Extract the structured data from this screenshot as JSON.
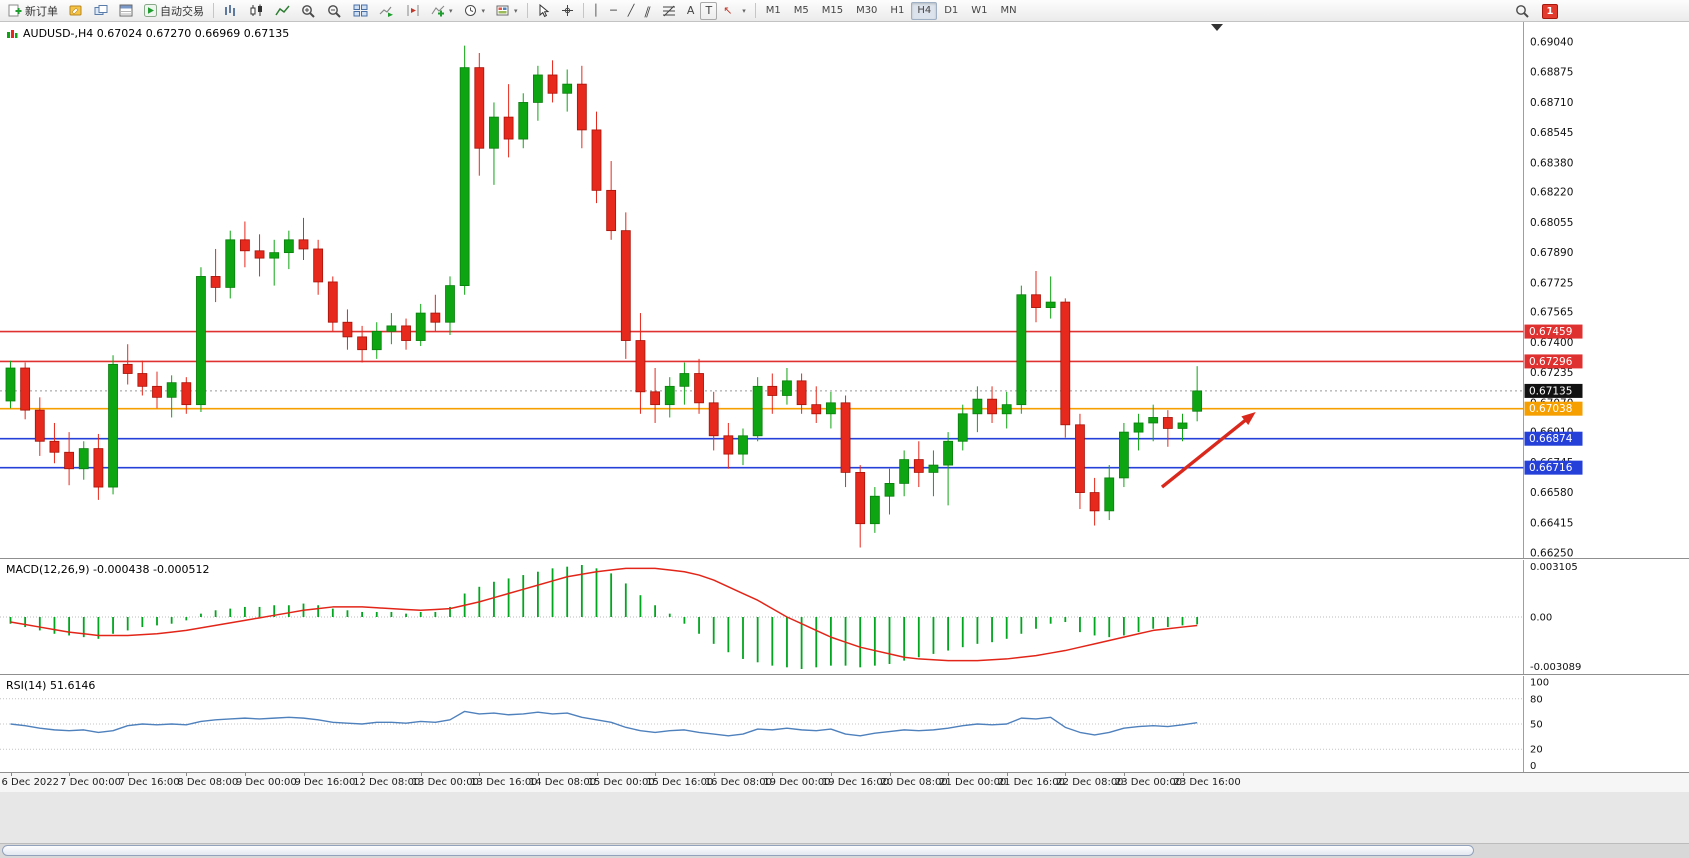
{
  "toolbar": {
    "new_order": "新订单",
    "autotrading": "自动交易",
    "timeframes": [
      "M1",
      "M5",
      "M15",
      "M30",
      "H1",
      "H4",
      "D1",
      "W1",
      "MN"
    ],
    "active_timeframe": "H4",
    "notification_badge": "1",
    "glyphs": {
      "vertical_line": "│",
      "horizontal_line": "─",
      "trendline": "╱",
      "channel": "∥",
      "text": "A",
      "text_label": "T",
      "arrow": "↖",
      "dropdown": "▾"
    }
  },
  "chart": {
    "title": "AUDUSD-,H4 0.67024 0.67270 0.66969 0.67135",
    "symbol": "AUDUSD-,H4",
    "ohlc": {
      "open": "0.67024",
      "high": "0.67270",
      "low": "0.66969",
      "close": "0.67135"
    }
  },
  "panels": {
    "macd_label": "MACD(12,26,9) -0.000438 -0.000512",
    "rsi_label": "RSI(14) 51.6146"
  },
  "chart_data": [
    {
      "type": "candlestick",
      "symbol": "AUDUSD-",
      "timeframe": "H4",
      "ylim": [
        0.6625,
        0.6904
      ],
      "y_axis_labels": [
        "0.69040",
        "0.68875",
        "0.68710",
        "0.68545",
        "0.68380",
        "0.68220",
        "0.68055",
        "0.67890",
        "0.67725",
        "0.67565",
        "0.67400",
        "0.67235",
        "0.67070",
        "0.66910",
        "0.66745",
        "0.66580",
        "0.66415",
        "0.66250"
      ],
      "x_labels": [
        "6 Dec 2022",
        "7 Dec 00:00",
        "7 Dec 16:00",
        "8 Dec 08:00",
        "9 Dec 00:00",
        "9 Dec 16:00",
        "12 Dec 08:00",
        "13 Dec 00:00",
        "13 Dec 16:00",
        "14 Dec 08:00",
        "15 Dec 00:00",
        "15 Dec 16:00",
        "16 Dec 08:00",
        "19 Dec 00:00",
        "19 Dec 16:00",
        "20 Dec 08:00",
        "21 Dec 00:00",
        "21 Dec 16:00",
        "22 Dec 08:00",
        "23 Dec 00:00",
        "23 Dec 16:00"
      ],
      "x_label_step": 4,
      "up_color": "#0ea512",
      "down_color": "#e7281c",
      "candles": [
        [
          0.6708,
          0.673,
          0.6704,
          0.6726
        ],
        [
          0.6726,
          0.6729,
          0.6698,
          0.6703
        ],
        [
          0.6703,
          0.671,
          0.6678,
          0.6686
        ],
        [
          0.6686,
          0.6696,
          0.6674,
          0.668
        ],
        [
          0.668,
          0.6691,
          0.6662,
          0.6671
        ],
        [
          0.6671,
          0.6686,
          0.6665,
          0.6682
        ],
        [
          0.6682,
          0.669,
          0.6654,
          0.6661
        ],
        [
          0.6661,
          0.6733,
          0.6657,
          0.6728
        ],
        [
          0.6728,
          0.6739,
          0.6717,
          0.6723
        ],
        [
          0.6723,
          0.673,
          0.6711,
          0.6716
        ],
        [
          0.6716,
          0.6724,
          0.6704,
          0.671
        ],
        [
          0.671,
          0.6722,
          0.6699,
          0.6718
        ],
        [
          0.6718,
          0.6721,
          0.6701,
          0.6706
        ],
        [
          0.6706,
          0.6781,
          0.6702,
          0.6776
        ],
        [
          0.6776,
          0.6791,
          0.6762,
          0.677
        ],
        [
          0.677,
          0.6801,
          0.6764,
          0.6796
        ],
        [
          0.6796,
          0.6806,
          0.6781,
          0.679
        ],
        [
          0.679,
          0.6799,
          0.6776,
          0.6786
        ],
        [
          0.6786,
          0.6796,
          0.6771,
          0.6789
        ],
        [
          0.6789,
          0.6801,
          0.678,
          0.6796
        ],
        [
          0.6796,
          0.6808,
          0.6785,
          0.6791
        ],
        [
          0.6791,
          0.6796,
          0.6766,
          0.6773
        ],
        [
          0.6773,
          0.6776,
          0.6746,
          0.6751
        ],
        [
          0.6751,
          0.6758,
          0.6736,
          0.6743
        ],
        [
          0.6743,
          0.6749,
          0.6729,
          0.6736
        ],
        [
          0.6736,
          0.6751,
          0.6731,
          0.6746
        ],
        [
          0.6746,
          0.6756,
          0.6739,
          0.6749
        ],
        [
          0.6749,
          0.6753,
          0.6736,
          0.6741
        ],
        [
          0.6741,
          0.6761,
          0.6738,
          0.6756
        ],
        [
          0.6756,
          0.6766,
          0.6746,
          0.6751
        ],
        [
          0.6751,
          0.6776,
          0.6744,
          0.6771
        ],
        [
          0.6771,
          0.6902,
          0.6766,
          0.689
        ],
        [
          0.689,
          0.6898,
          0.6831,
          0.6846
        ],
        [
          0.6846,
          0.6871,
          0.6826,
          0.6863
        ],
        [
          0.6863,
          0.6881,
          0.6841,
          0.6851
        ],
        [
          0.6851,
          0.6876,
          0.6846,
          0.6871
        ],
        [
          0.6871,
          0.6891,
          0.6861,
          0.6886
        ],
        [
          0.6886,
          0.6894,
          0.6871,
          0.6876
        ],
        [
          0.6876,
          0.6889,
          0.6866,
          0.6881
        ],
        [
          0.6881,
          0.6891,
          0.6846,
          0.6856
        ],
        [
          0.6856,
          0.6866,
          0.6816,
          0.6823
        ],
        [
          0.6823,
          0.6839,
          0.6796,
          0.6801
        ],
        [
          0.6801,
          0.6811,
          0.6731,
          0.6741
        ],
        [
          0.6741,
          0.6756,
          0.6701,
          0.6713
        ],
        [
          0.6713,
          0.6726,
          0.6696,
          0.6706
        ],
        [
          0.6706,
          0.6721,
          0.6699,
          0.6716
        ],
        [
          0.6716,
          0.6729,
          0.6706,
          0.6723
        ],
        [
          0.6723,
          0.6731,
          0.6701,
          0.6707
        ],
        [
          0.6707,
          0.6713,
          0.6681,
          0.6689
        ],
        [
          0.6689,
          0.6696,
          0.6671,
          0.6679
        ],
        [
          0.6679,
          0.6693,
          0.6673,
          0.6689
        ],
        [
          0.6689,
          0.6721,
          0.6686,
          0.6716
        ],
        [
          0.6716,
          0.6723,
          0.6701,
          0.6711
        ],
        [
          0.6711,
          0.6726,
          0.6706,
          0.6719
        ],
        [
          0.6719,
          0.6723,
          0.6701,
          0.6706
        ],
        [
          0.6706,
          0.6716,
          0.6696,
          0.6701
        ],
        [
          0.6701,
          0.6713,
          0.6693,
          0.6707
        ],
        [
          0.6707,
          0.6711,
          0.6661,
          0.6669
        ],
        [
          0.6669,
          0.6673,
          0.6628,
          0.6641
        ],
        [
          0.6641,
          0.6661,
          0.6636,
          0.6656
        ],
        [
          0.6656,
          0.6671,
          0.6646,
          0.6663
        ],
        [
          0.6663,
          0.6681,
          0.6656,
          0.6676
        ],
        [
          0.6676,
          0.6686,
          0.6661,
          0.6669
        ],
        [
          0.6669,
          0.6681,
          0.6656,
          0.6673
        ],
        [
          0.6673,
          0.6691,
          0.6651,
          0.6686
        ],
        [
          0.6686,
          0.6706,
          0.6681,
          0.6701
        ],
        [
          0.6701,
          0.6716,
          0.6691,
          0.6709
        ],
        [
          0.6709,
          0.6716,
          0.6696,
          0.6701
        ],
        [
          0.6701,
          0.6713,
          0.6693,
          0.6706
        ],
        [
          0.6706,
          0.6771,
          0.6701,
          0.6766
        ],
        [
          0.6766,
          0.6779,
          0.6751,
          0.6759
        ],
        [
          0.6759,
          0.6776,
          0.6753,
          0.6762
        ],
        [
          0.6762,
          0.6764,
          0.6688,
          0.6695
        ],
        [
          0.6695,
          0.6701,
          0.6649,
          0.6658
        ],
        [
          0.6658,
          0.6666,
          0.664,
          0.6648
        ],
        [
          0.6648,
          0.6673,
          0.6643,
          0.6666
        ],
        [
          0.6666,
          0.6696,
          0.6661,
          0.6691
        ],
        [
          0.6691,
          0.6701,
          0.6681,
          0.6696
        ],
        [
          0.6696,
          0.6706,
          0.6686,
          0.6699
        ],
        [
          0.6699,
          0.6703,
          0.6683,
          0.6693
        ],
        [
          0.6693,
          0.6701,
          0.6686,
          0.6696
        ],
        [
          0.67024,
          0.6727,
          0.66969,
          0.67135
        ]
      ],
      "hlines": [
        {
          "price": 0.67459,
          "label": "0.67459",
          "color": "#e03131"
        },
        {
          "price": 0.67296,
          "label": "0.67296",
          "color": "#e03131"
        },
        {
          "price": 0.67038,
          "label": "0.67038",
          "color": "#f59f00"
        },
        {
          "price": 0.66874,
          "label": "0.66874",
          "color": "#2440d8"
        },
        {
          "price": 0.66716,
          "label": "0.66716",
          "color": "#2440d8"
        }
      ],
      "current_price": {
        "price": 0.67135,
        "label": "0.67135",
        "color": "#111111"
      },
      "arrow": {
        "from": {
          "bar": 78.6,
          "price": 0.6661
        },
        "to": {
          "bar": 85.0,
          "price": 0.6702
        },
        "color": "#da291c"
      }
    },
    {
      "type": "bar",
      "name": "MACD(12,26,9)",
      "value_main": "-0.000438",
      "value_signal": "-0.000512",
      "ylim": [
        -0.0031,
        0.0031
      ],
      "y_axis_labels": [
        "0.003105",
        "0.00",
        "-0.003089"
      ],
      "histogram_color": "#00a61e",
      "signal_color": "#e22518",
      "values": [
        -0.0004,
        -0.0006,
        -0.0008,
        -0.001,
        -0.0011,
        -0.0012,
        -0.0013,
        -0.001,
        -0.0008,
        -0.0006,
        -0.0005,
        -0.0004,
        -0.0002,
        0.0002,
        0.0004,
        0.0005,
        0.0006,
        0.0006,
        0.0007,
        0.0007,
        0.0008,
        0.0007,
        0.0005,
        0.0004,
        0.0003,
        0.0003,
        0.0003,
        0.0002,
        0.0003,
        0.0003,
        0.0006,
        0.0014,
        0.0018,
        0.0021,
        0.0023,
        0.0025,
        0.0027,
        0.0029,
        0.003,
        0.0031,
        0.0029,
        0.0026,
        0.002,
        0.0013,
        0.0007,
        0.0002,
        -0.0004,
        -0.001,
        -0.0016,
        -0.0021,
        -0.0025,
        -0.0027,
        -0.0029,
        -0.003,
        -0.0031,
        -0.003,
        -0.0029,
        -0.0029,
        -0.003,
        -0.0029,
        -0.0028,
        -0.0026,
        -0.0024,
        -0.0022,
        -0.002,
        -0.0018,
        -0.0016,
        -0.0015,
        -0.0013,
        -0.001,
        -0.0007,
        -0.0004,
        -0.0003,
        -0.0009,
        -0.0011,
        -0.0012,
        -0.0011,
        -0.0009,
        -0.0007,
        -0.0006,
        -0.0005,
        -0.00044
      ],
      "signal": [
        -0.0003,
        -0.00045,
        -0.0006,
        -0.00075,
        -0.0009,
        -0.001,
        -0.0011,
        -0.0011,
        -0.0011,
        -0.00105,
        -0.001,
        -0.0009,
        -0.0008,
        -0.00065,
        -0.0005,
        -0.00035,
        -0.0002,
        -5e-05,
        0.0001,
        0.00025,
        0.0004,
        0.0005,
        0.0006,
        0.0006,
        0.0006,
        0.00055,
        0.0005,
        0.00045,
        0.0004,
        0.00045,
        0.0005,
        0.0007,
        0.0009,
        0.00115,
        0.0014,
        0.00165,
        0.0019,
        0.00215,
        0.0024,
        0.00255,
        0.0027,
        0.0028,
        0.0029,
        0.0029,
        0.0029,
        0.0028,
        0.0027,
        0.0025,
        0.0022,
        0.0018,
        0.0014,
        0.001,
        0.0005,
        0.0,
        -0.0004,
        -0.0008,
        -0.0012,
        -0.0015,
        -0.0018,
        -0.002,
        -0.0022,
        -0.0024,
        -0.0025,
        -0.00255,
        -0.0026,
        -0.0026,
        -0.0026,
        -0.00255,
        -0.0025,
        -0.0024,
        -0.0023,
        -0.00215,
        -0.002,
        -0.0018,
        -0.0016,
        -0.0014,
        -0.0012,
        -0.001,
        -0.0008,
        -0.0007,
        -0.0006,
        -0.00051
      ]
    },
    {
      "type": "line",
      "name": "RSI(14)",
      "value": "51.6146",
      "ylim": [
        0,
        100
      ],
      "levels": [
        80,
        50,
        20
      ],
      "y_axis_labels": [
        "100",
        "80",
        "50",
        "20",
        "0"
      ],
      "line_color": "#4f81bd",
      "values": [
        50,
        48,
        45,
        43,
        42,
        43,
        40,
        42,
        48,
        50,
        49,
        50,
        49,
        53,
        55,
        56,
        57,
        56,
        57,
        58,
        57,
        55,
        52,
        51,
        50,
        52,
        52,
        51,
        53,
        52,
        55,
        65,
        62,
        63,
        61,
        62,
        64,
        62,
        63,
        58,
        55,
        52,
        46,
        42,
        40,
        42,
        43,
        40,
        38,
        36,
        38,
        44,
        43,
        45,
        43,
        42,
        44,
        38,
        36,
        39,
        41,
        43,
        42,
        43,
        45,
        48,
        50,
        49,
        50,
        57,
        56,
        58,
        46,
        40,
        37,
        40,
        45,
        47,
        48,
        47,
        49,
        51.6
      ]
    }
  ]
}
